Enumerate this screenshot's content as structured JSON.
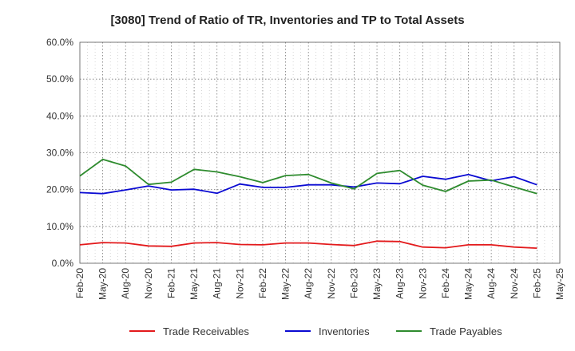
{
  "chart_data": {
    "type": "line",
    "title": "[3080]  Trend of Ratio of TR, Inventories and TP to Total Assets",
    "xlabel": "",
    "ylabel": "",
    "ylim": [
      0,
      60
    ],
    "y_ticks": [
      "0.0%",
      "10.0%",
      "20.0%",
      "30.0%",
      "40.0%",
      "50.0%",
      "60.0%"
    ],
    "x_tick_labels": [
      "Feb-20",
      "May-20",
      "Aug-20",
      "Nov-20",
      "Feb-21",
      "May-21",
      "Aug-21",
      "Nov-21",
      "Feb-22",
      "May-22",
      "Aug-22",
      "Nov-22",
      "Feb-23",
      "May-23",
      "Aug-23",
      "Nov-23",
      "Feb-24",
      "May-24",
      "Aug-24",
      "Nov-24",
      "Feb-25",
      "May-25"
    ],
    "x": [
      "Feb-20",
      "May-20",
      "Aug-20",
      "Nov-20",
      "Feb-21",
      "May-21",
      "Aug-21",
      "Nov-21",
      "Feb-22",
      "May-22",
      "Aug-22",
      "Nov-22",
      "Feb-23",
      "May-23",
      "Aug-23",
      "Nov-23",
      "Feb-24",
      "May-24",
      "Aug-24",
      "Nov-24",
      "Feb-25"
    ],
    "grid": true,
    "legend_position": "bottom",
    "series": [
      {
        "name": "Trade Receivables",
        "color": "#e31a1c",
        "values": [
          5.0,
          5.6,
          5.5,
          4.7,
          4.6,
          5.5,
          5.6,
          5.1,
          5.0,
          5.5,
          5.5,
          5.1,
          4.8,
          6.0,
          5.9,
          4.4,
          4.2,
          5.0,
          5.0,
          4.4,
          4.1
        ]
      },
      {
        "name": "Inventories",
        "color": "#0a0ad2",
        "values": [
          19.2,
          18.9,
          19.9,
          21.0,
          19.9,
          20.1,
          19.0,
          21.5,
          20.6,
          20.6,
          21.3,
          21.3,
          20.7,
          21.8,
          21.6,
          23.6,
          22.8,
          24.1,
          22.4,
          23.5,
          21.3
        ]
      },
      {
        "name": "Trade Payables",
        "color": "#2e8b2e",
        "values": [
          23.7,
          28.2,
          26.4,
          21.4,
          22.0,
          25.5,
          24.8,
          23.5,
          21.9,
          23.8,
          24.1,
          21.8,
          20.2,
          24.4,
          25.2,
          21.2,
          19.5,
          22.3,
          22.6,
          20.7,
          18.9
        ]
      }
    ]
  }
}
